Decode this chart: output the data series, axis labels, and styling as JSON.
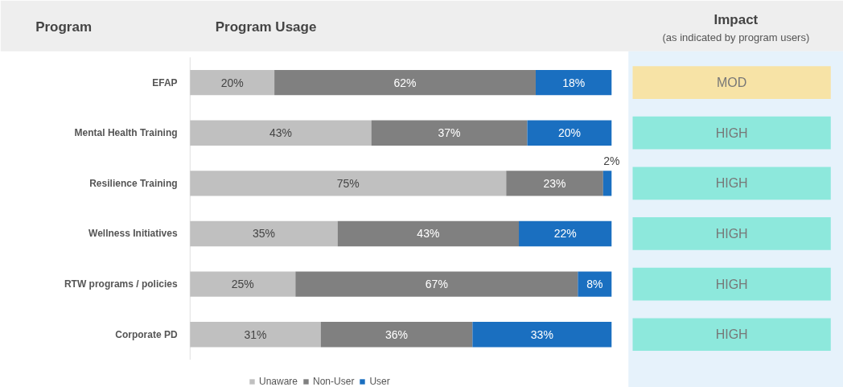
{
  "chart_data": [
    {
      "type": "bar",
      "orientation": "horizontal",
      "stacked": true,
      "title": "Program Usage",
      "ylabel": "Program",
      "categories": [
        "EFAP",
        "Mental Health Training",
        "Resilience Training",
        "Wellness Initiatives",
        "RTW programs / policies",
        "Corporate PD"
      ],
      "series": [
        {
          "name": "Unaware",
          "color": "#c0c0c0",
          "values": [
            20,
            43,
            75,
            35,
            25,
            31
          ],
          "value_labels": [
            "20%",
            "43%",
            "75%",
            "35%",
            "25%",
            "31%"
          ]
        },
        {
          "name": "Non-User",
          "color": "#808080",
          "values": [
            62,
            37,
            23,
            43,
            67,
            36
          ],
          "value_labels": [
            "62%",
            "37%",
            "23%",
            "43%",
            "67%",
            "36%"
          ]
        },
        {
          "name": "User",
          "color": "#1a6fc0",
          "values": [
            18,
            20,
            2,
            22,
            8,
            33
          ],
          "value_labels": [
            "18%",
            "20%",
            "2%",
            "22%",
            "8%",
            "33%"
          ]
        }
      ],
      "legend": "bottom",
      "grid": false
    },
    {
      "type": "other",
      "title": "Impact",
      "subtitle": "(as indicated by program users)",
      "annotations": [
        "MOD",
        "HIGH",
        "HIGH",
        "HIGH",
        "HIGH",
        "HIGH"
      ],
      "colors": [
        "#f7e3a6",
        "#8de8dc",
        "#8de8dc",
        "#8de8dc",
        "#8de8dc",
        "#8de8dc"
      ]
    }
  ]
}
